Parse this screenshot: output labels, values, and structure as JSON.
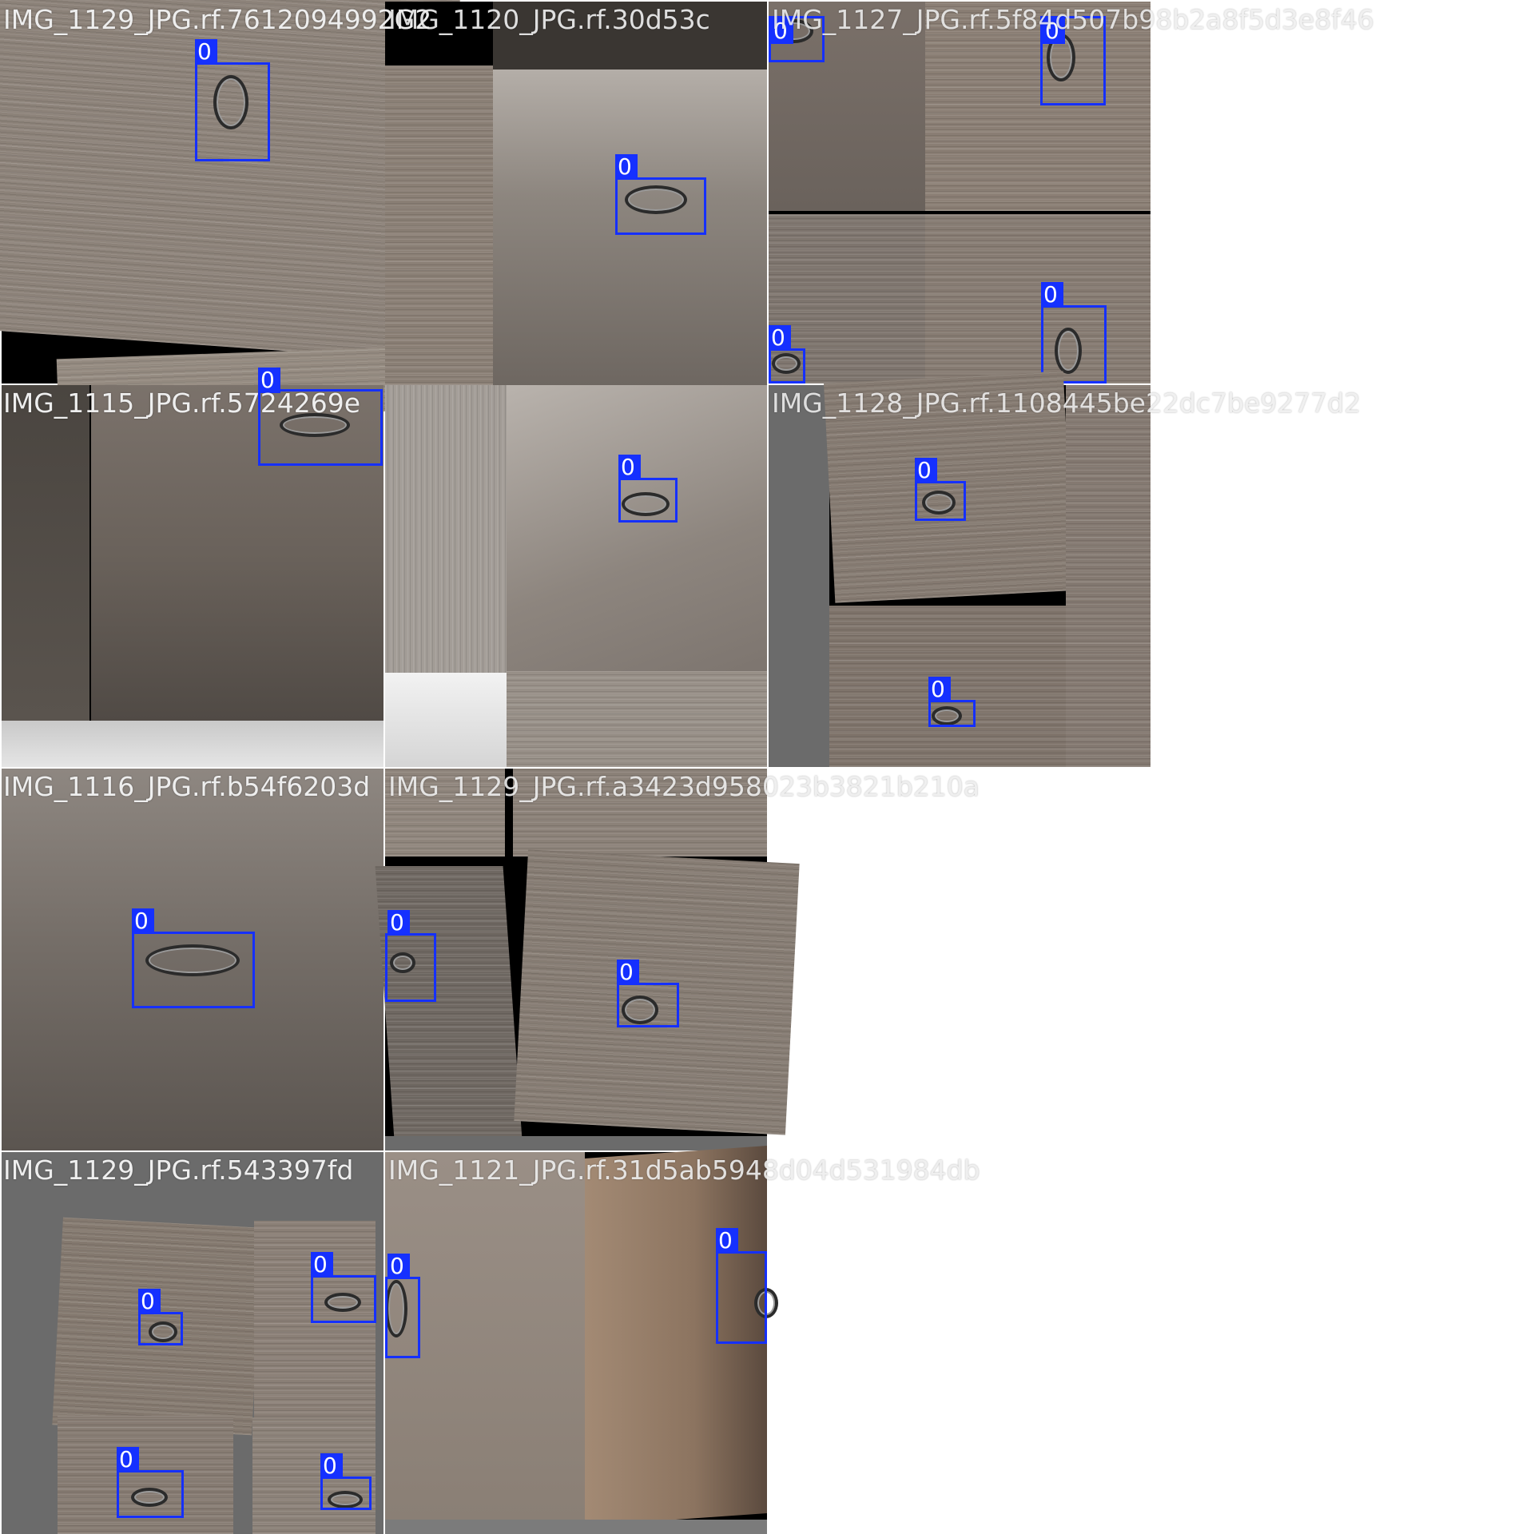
{
  "mosaic": {
    "tiles": [
      {
        "name": "image-tile-1",
        "caption": "IMG_1129_JPG.rf.7612094992G2",
        "boxes": [
          {
            "label": "0"
          }
        ]
      },
      {
        "name": "image-tile-2",
        "caption": "IMG_1120_JPG.rf.30d53c",
        "boxes": [
          {
            "label": "0"
          }
        ]
      },
      {
        "name": "image-tile-3",
        "caption": "IMG_1127_JPG.rf.5f84d507b98b2a8f5d3e8f46",
        "boxes": [
          {
            "label": "0"
          },
          {
            "label": "0"
          },
          {
            "label": "0"
          },
          {
            "label": "0"
          }
        ]
      },
      {
        "name": "image-tile-4",
        "caption": "IMG_1115_JPG.rf.5724269e",
        "boxes": [
          {
            "label": "0"
          }
        ]
      },
      {
        "name": "image-tile-5",
        "caption": "",
        "boxes": [
          {
            "label": "0"
          }
        ]
      },
      {
        "name": "image-tile-6",
        "caption": "IMG_1128_JPG.rf.1108445be22dc7be9277d2",
        "boxes": [
          {
            "label": "0"
          },
          {
            "label": "0"
          }
        ]
      },
      {
        "name": "image-tile-7",
        "caption": "IMG_1116_JPG.rf.b54f6203d",
        "boxes": [
          {
            "label": "0"
          }
        ]
      },
      {
        "name": "image-tile-8",
        "caption": "IMG_1129_JPG.rf.a3423d958023b3821b210a",
        "boxes": [
          {
            "label": "0"
          },
          {
            "label": "0"
          }
        ]
      },
      {
        "name": "image-tile-9",
        "caption": "IMG_1129_JPG.rf.543397fd",
        "boxes": [
          {
            "label": "0"
          },
          {
            "label": "0"
          },
          {
            "label": "0"
          },
          {
            "label": "0"
          }
        ]
      },
      {
        "name": "image-tile-10",
        "caption": "IMG_1121_JPG.rf.31d5ab5948d04d531984db",
        "boxes": [
          {
            "label": "0"
          },
          {
            "label": "0"
          }
        ]
      }
    ]
  },
  "colors": {
    "box": "#1530ff",
    "label_text": "#ffffff",
    "caption_text": "#eeeeee",
    "wood_light": "#8a8078",
    "wood_dark": "#5a5550",
    "padding_grey": "#6b6b6b"
  }
}
